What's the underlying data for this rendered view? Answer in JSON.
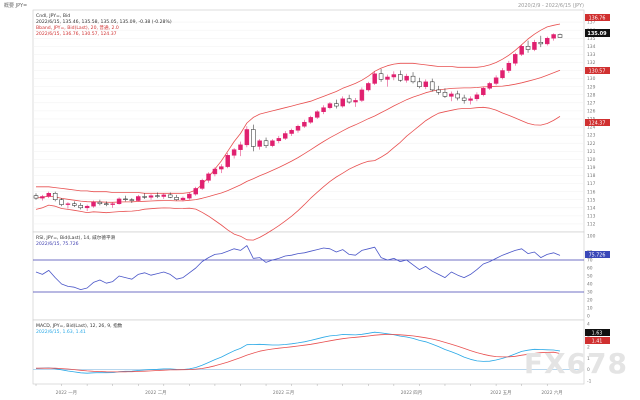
{
  "header": {
    "top_left": "概要 JPY=",
    "top_right": "2020/2/9 - 2022/6/15 (JPY)"
  },
  "watermark": "FX678",
  "colors": {
    "up_candle": "#e0206f",
    "down_candle": "#222222",
    "bollinger": "#e85050",
    "rsi_line": "#4a56c8",
    "rsi_levels": "#4040b0",
    "macd_line": "#29a8e6",
    "signal_line": "#e85050",
    "last_price_tag": "#111111",
    "band_tag": "#d03030"
  },
  "chart_data": [
    {
      "type": "candlestick",
      "legend": [
        "Cndl, JPY=, Bid",
        "2022/6/15, 135.46, 135.58, 135.05, 135.09, -0.38 (-0.28%)",
        "Bband, JPY=, Bid(Last), 20, 普通, 2.0",
        "2022/6/15, 136.76, 130.57, 124.37"
      ],
      "last_price_label": "135.09",
      "upper_band_label": "136.76",
      "middle_band_label": "130.57",
      "lower_band_label": "124.37",
      "y_ticks": [
        "137",
        "136",
        "135",
        "134",
        "133",
        "132",
        "131",
        "130",
        "129",
        "128",
        "127",
        "126",
        "125",
        "124",
        "123",
        "122",
        "121",
        "120",
        "119",
        "118",
        "117",
        "116",
        "115",
        "114",
        "113",
        "112"
      ],
      "ylim": [
        111.5,
        138.0
      ],
      "x_ticks": [
        "2022 一月",
        "2022 二月",
        "2022 三月",
        "2022 四月",
        "2022 五月",
        "2022 六月"
      ],
      "ohlc": [
        [
          115.5,
          115.8,
          115.0,
          115.2
        ],
        [
          115.2,
          115.6,
          114.9,
          115.4
        ],
        [
          115.4,
          116.0,
          115.2,
          115.8
        ],
        [
          115.8,
          116.0,
          114.8,
          115.0
        ],
        [
          115.0,
          115.2,
          114.2,
          114.4
        ],
        [
          114.4,
          114.7,
          113.9,
          114.5
        ],
        [
          114.5,
          114.8,
          114.1,
          114.3
        ],
        [
          114.3,
          114.6,
          113.8,
          114.0
        ],
        [
          114.0,
          114.4,
          113.6,
          114.2
        ],
        [
          114.2,
          114.9,
          114.0,
          114.7
        ],
        [
          114.7,
          115.0,
          114.3,
          114.5
        ],
        [
          114.5,
          114.8,
          114.2,
          114.4
        ],
        [
          114.4,
          114.7,
          114.0,
          114.5
        ],
        [
          114.5,
          115.3,
          114.4,
          115.1
        ],
        [
          115.1,
          115.5,
          114.8,
          115.0
        ],
        [
          115.0,
          115.2,
          114.6,
          114.9
        ],
        [
          114.9,
          115.6,
          114.8,
          115.4
        ],
        [
          115.4,
          115.8,
          115.1,
          115.3
        ],
        [
          115.3,
          115.7,
          115.0,
          115.5
        ],
        [
          115.5,
          115.9,
          115.2,
          115.4
        ],
        [
          115.4,
          115.8,
          115.1,
          115.6
        ],
        [
          115.6,
          115.9,
          115.2,
          115.3
        ],
        [
          115.3,
          115.6,
          114.9,
          115.0
        ],
        [
          115.0,
          115.4,
          114.8,
          115.2
        ],
        [
          115.2,
          115.9,
          115.0,
          115.7
        ],
        [
          115.7,
          116.6,
          115.5,
          116.4
        ],
        [
          116.4,
          117.6,
          116.2,
          117.4
        ],
        [
          117.4,
          118.4,
          117.1,
          118.2
        ],
        [
          118.2,
          119.0,
          117.9,
          118.8
        ],
        [
          118.8,
          119.4,
          118.3,
          119.1
        ],
        [
          119.1,
          120.8,
          118.9,
          120.5
        ],
        [
          120.5,
          121.4,
          120.1,
          121.2
        ],
        [
          121.2,
          122.2,
          120.4,
          121.8
        ],
        [
          121.8,
          124.1,
          121.5,
          123.7
        ],
        [
          123.7,
          124.3,
          121.0,
          121.6
        ],
        [
          121.6,
          122.5,
          121.2,
          122.3
        ],
        [
          122.3,
          122.7,
          121.4,
          121.7
        ],
        [
          121.7,
          122.5,
          121.5,
          122.3
        ],
        [
          122.3,
          122.9,
          122.0,
          122.6
        ],
        [
          122.6,
          123.5,
          122.4,
          123.2
        ],
        [
          123.2,
          123.8,
          122.9,
          123.6
        ],
        [
          123.6,
          124.3,
          123.3,
          124.1
        ],
        [
          124.1,
          124.9,
          123.9,
          124.6
        ],
        [
          124.6,
          125.4,
          124.4,
          125.2
        ],
        [
          125.2,
          126.1,
          125.0,
          125.9
        ],
        [
          125.9,
          126.7,
          125.6,
          126.4
        ],
        [
          126.4,
          127.1,
          126.2,
          126.9
        ],
        [
          126.9,
          127.4,
          126.3,
          126.6
        ],
        [
          126.6,
          127.8,
          126.4,
          127.5
        ],
        [
          127.5,
          128.0,
          126.9,
          127.1
        ],
        [
          127.1,
          127.6,
          126.5,
          127.3
        ],
        [
          127.3,
          128.9,
          127.1,
          128.6
        ],
        [
          128.6,
          129.6,
          128.4,
          129.4
        ],
        [
          129.4,
          130.9,
          129.2,
          130.6
        ],
        [
          130.6,
          131.2,
          129.6,
          129.9
        ],
        [
          129.9,
          130.5,
          129.0,
          130.2
        ],
        [
          130.2,
          130.9,
          129.8,
          130.5
        ],
        [
          130.5,
          131.0,
          129.6,
          129.8
        ],
        [
          129.8,
          130.6,
          129.5,
          130.3
        ],
        [
          130.3,
          130.8,
          129.4,
          129.6
        ],
        [
          129.6,
          130.1,
          128.8,
          129.0
        ],
        [
          129.0,
          129.9,
          128.7,
          129.6
        ],
        [
          129.6,
          130.0,
          128.4,
          128.6
        ],
        [
          128.6,
          129.1,
          128.0,
          128.3
        ],
        [
          128.3,
          128.8,
          127.6,
          127.8
        ],
        [
          127.8,
          128.4,
          127.2,
          128.1
        ],
        [
          128.1,
          128.5,
          127.3,
          127.6
        ],
        [
          127.6,
          128.0,
          126.9,
          127.3
        ],
        [
          127.3,
          127.8,
          126.8,
          127.5
        ],
        [
          127.5,
          128.3,
          127.2,
          128.0
        ],
        [
          128.0,
          129.0,
          127.8,
          128.8
        ],
        [
          128.8,
          129.6,
          128.6,
          129.4
        ],
        [
          129.4,
          130.4,
          129.2,
          130.1
        ],
        [
          130.1,
          131.3,
          129.9,
          131.0
        ],
        [
          131.0,
          132.2,
          130.7,
          131.9
        ],
        [
          131.9,
          133.2,
          131.6,
          133.0
        ],
        [
          133.0,
          134.2,
          132.8,
          134.0
        ],
        [
          134.0,
          134.7,
          133.2,
          133.6
        ],
        [
          133.6,
          134.8,
          133.4,
          134.5
        ],
        [
          134.5,
          135.3,
          133.9,
          134.3
        ],
        [
          134.3,
          135.2,
          134.1,
          135.0
        ],
        [
          135.0,
          135.6,
          134.7,
          135.46
        ],
        [
          135.46,
          135.58,
          135.05,
          135.09
        ]
      ],
      "bollinger": {
        "upper": [
          116.6,
          116.6,
          116.6,
          116.5,
          116.4,
          116.3,
          116.2,
          116.1,
          116.1,
          116.0,
          116.0,
          116.0,
          115.9,
          115.9,
          115.9,
          115.9,
          115.9,
          115.8,
          115.8,
          115.8,
          115.8,
          115.8,
          115.8,
          115.8,
          115.9,
          116.2,
          116.9,
          117.8,
          118.8,
          119.8,
          121.0,
          122.2,
          123.2,
          124.5,
          125.2,
          125.6,
          125.8,
          126.0,
          126.2,
          126.4,
          126.6,
          126.8,
          127.0,
          127.2,
          127.5,
          127.8,
          128.1,
          128.4,
          128.8,
          129.1,
          129.4,
          129.8,
          130.3,
          130.9,
          131.3,
          131.6,
          131.8,
          131.9,
          131.9,
          131.9,
          131.8,
          131.7,
          131.6,
          131.5,
          131.5,
          131.5,
          131.4,
          131.4,
          131.4,
          131.4,
          131.5,
          131.7,
          132.0,
          132.4,
          132.9,
          133.5,
          134.2,
          134.9,
          135.5,
          136.0,
          136.4,
          136.6,
          136.76
        ]
      }
    },
    {
      "type": "line",
      "legend": [
        "RSI, JPY=, Bid(Last), 14, 威尔德平滑",
        "2022/6/15, 75.726"
      ],
      "last_value_label": "75.726",
      "levels": [
        70,
        30
      ],
      "y_ticks": [
        "100",
        "80",
        "70",
        "60",
        "50",
        "40",
        "30",
        "20",
        "10",
        "0"
      ],
      "ylim": [
        0,
        100
      ],
      "values": [
        55,
        52,
        57,
        48,
        40,
        37,
        36,
        33,
        35,
        42,
        45,
        41,
        43,
        50,
        48,
        46,
        52,
        54,
        51,
        53,
        55,
        52,
        46,
        48,
        54,
        60,
        68,
        73,
        77,
        78,
        81,
        84,
        82,
        88,
        72,
        73,
        67,
        70,
        72,
        75,
        76,
        78,
        79,
        81,
        83,
        85,
        84,
        80,
        83,
        77,
        76,
        82,
        84,
        86,
        73,
        70,
        72,
        68,
        70,
        64,
        58,
        62,
        56,
        52,
        48,
        55,
        51,
        48,
        52,
        58,
        65,
        68,
        72,
        76,
        79,
        82,
        84,
        78,
        80,
        73,
        77,
        79,
        75.726
      ]
    },
    {
      "type": "line",
      "legend": [
        "MACD, JPY=, Bid(Last), 12, 26, 9, 指数",
        "2022/6/15, 1.63, 1.41"
      ],
      "macd_label": "1.63",
      "signal_label": "1.41",
      "y_ticks": [
        "4",
        "3",
        "2",
        "1",
        "0",
        "-1"
      ],
      "ylim": [
        -1,
        4
      ],
      "series": [
        {
          "name": "",
          "values": [
            0.1,
            0.12,
            0.15,
            0.08,
            -0.02,
            -0.12,
            -0.2,
            -0.28,
            -0.32,
            -0.28,
            -0.26,
            -0.27,
            -0.26,
            -0.18,
            -0.15,
            -0.14,
            -0.08,
            -0.03,
            0.01,
            0.03,
            0.06,
            0.06,
            0.02,
            0.01,
            0.06,
            0.18,
            0.38,
            0.62,
            0.88,
            1.1,
            1.38,
            1.65,
            1.86,
            2.18,
            2.2,
            2.22,
            2.18,
            2.16,
            2.16,
            2.2,
            2.26,
            2.34,
            2.44,
            2.56,
            2.7,
            2.84,
            2.96,
            3.0,
            3.08,
            3.06,
            3.04,
            3.1,
            3.18,
            3.28,
            3.22,
            3.14,
            3.06,
            2.94,
            2.86,
            2.74,
            2.56,
            2.44,
            2.24,
            2.02,
            1.76,
            1.56,
            1.34,
            1.1,
            0.9,
            0.76,
            0.72,
            0.74,
            0.84,
            0.98,
            1.16,
            1.38,
            1.6,
            1.7,
            1.78,
            1.76,
            1.74,
            1.72,
            1.63
          ]
        },
        {
          "name": "",
          "values": [
            0.12,
            0.12,
            0.13,
            0.12,
            0.09,
            0.05,
            0.0,
            -0.06,
            -0.11,
            -0.15,
            -0.17,
            -0.19,
            -0.2,
            -0.2,
            -0.19,
            -0.18,
            -0.16,
            -0.14,
            -0.11,
            -0.08,
            -0.05,
            -0.03,
            -0.02,
            -0.01,
            0.0,
            0.04,
            0.1,
            0.2,
            0.33,
            0.49,
            0.66,
            0.85,
            1.05,
            1.27,
            1.45,
            1.61,
            1.72,
            1.81,
            1.88,
            1.94,
            2.0,
            2.07,
            2.14,
            2.22,
            2.32,
            2.42,
            2.53,
            2.62,
            2.71,
            2.78,
            2.83,
            2.89,
            2.95,
            3.02,
            3.06,
            3.08,
            3.08,
            3.05,
            3.01,
            2.96,
            2.88,
            2.79,
            2.68,
            2.55,
            2.39,
            2.22,
            2.05,
            1.86,
            1.67,
            1.49,
            1.34,
            1.22,
            1.14,
            1.11,
            1.12,
            1.17,
            1.26,
            1.34,
            1.42,
            1.48,
            1.51,
            1.53,
            1.41
          ]
        }
      ]
    }
  ]
}
